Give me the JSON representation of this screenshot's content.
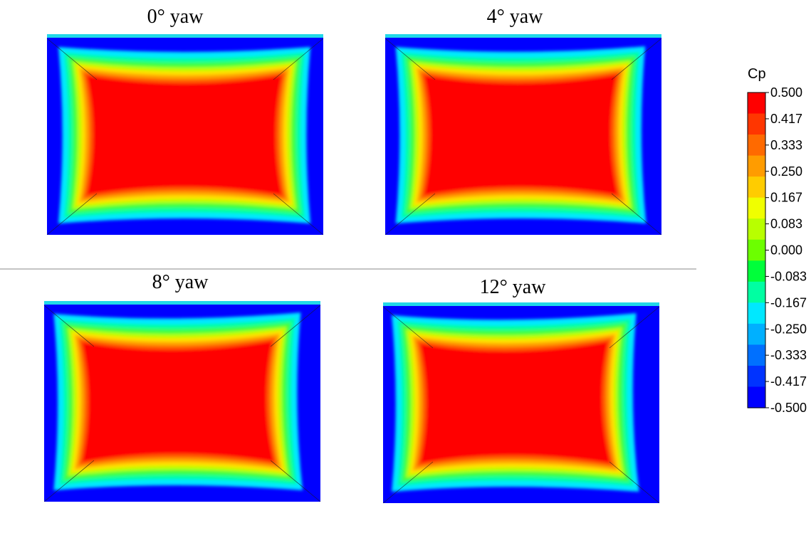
{
  "panels": [
    {
      "title": "0° yaw",
      "yaw_deg": 0
    },
    {
      "title": "4° yaw",
      "yaw_deg": 4
    },
    {
      "title": "8° yaw",
      "yaw_deg": 8
    },
    {
      "title": "12° yaw",
      "yaw_deg": 12
    }
  ],
  "colorbar": {
    "title": "Cp",
    "min": -0.5,
    "max": 0.5,
    "ticks": [
      "0.500",
      "0.417",
      "0.333",
      "0.250",
      "0.167",
      "0.083",
      "0.000",
      "-0.083",
      "-0.167",
      "-0.250",
      "-0.333",
      "-0.417",
      "-0.500"
    ],
    "colors": [
      "#ff0000",
      "#ff3600",
      "#ff6a00",
      "#ff9c00",
      "#ffcc00",
      "#f0ff00",
      "#b8ff00",
      "#6cff00",
      "#00ff3a",
      "#00ffa2",
      "#00e8ff",
      "#00b0ff",
      "#0070ff",
      "#0033ff",
      "#0000ff"
    ]
  },
  "field_colors": {
    "background": "#0000ff",
    "edge_strip": "#22d8e8",
    "core": "#ff0000"
  }
}
